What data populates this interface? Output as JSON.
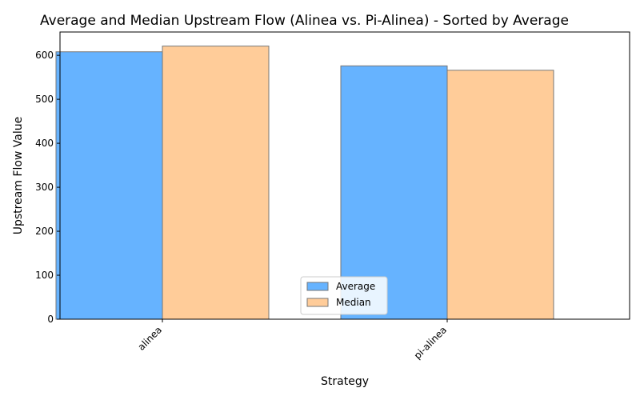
{
  "chart_data": {
    "type": "bar",
    "title": "Average and Median Upstream Flow (Alinea vs. Pi-Alinea) - Sorted by Average",
    "xlabel": "Strategy",
    "ylabel": "Upstream Flow Value",
    "categories": [
      "alinea",
      "pi-alinea"
    ],
    "series": [
      {
        "name": "Average",
        "values": [
          608,
          576
        ],
        "color": "#66b3ff"
      },
      {
        "name": "Median",
        "values": [
          621,
          566
        ],
        "color": "#ffcc99"
      }
    ],
    "ylim": [
      0,
      653
    ],
    "yticks": [
      0,
      100,
      200,
      300,
      400,
      500,
      600
    ],
    "grid": false,
    "legend_position": "bottom-center"
  }
}
